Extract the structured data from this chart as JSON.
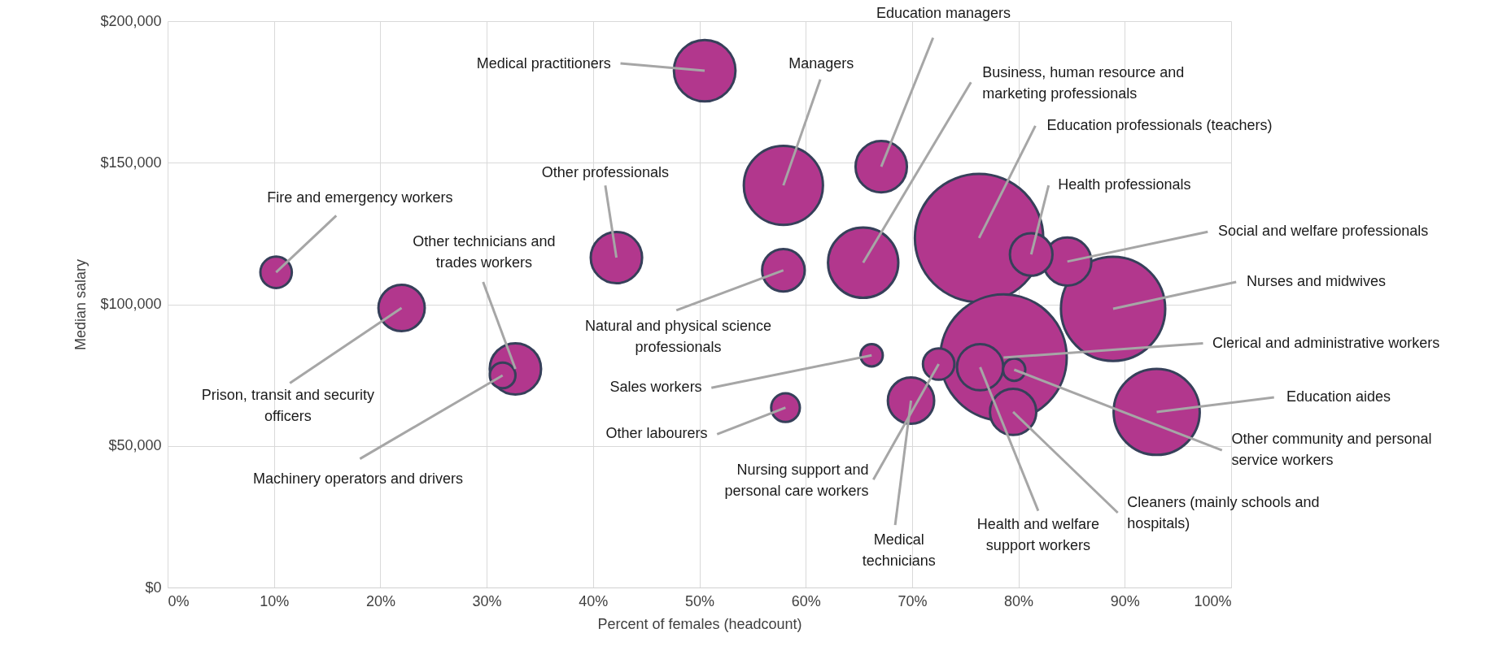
{
  "chart_data": {
    "type": "bubble",
    "xlabel": "Percent of females (headcount)",
    "ylabel": "Median salary",
    "color": "#b2378d",
    "x": [
      76.3,
      78.6,
      88.9,
      93.0,
      57.9,
      65.4,
      50.5,
      32.7,
      42.2,
      67.1,
      84.6,
      76.4,
      22.0,
      69.9,
      79.5,
      57.9,
      81.2,
      72.5,
      10.2,
      58.1,
      31.5,
      79.6,
      66.2
    ],
    "values": [
      123400,
      81200,
      98400,
      62000,
      142000,
      114700,
      182500,
      77200,
      116500,
      148600,
      115100,
      77800,
      98700,
      66000,
      62000,
      112000,
      117600,
      78900,
      111300,
      63500,
      74900,
      76900,
      82000
    ],
    "sizes": [
      1,
      0.97,
      0.66,
      0.45,
      0.38,
      0.3,
      0.23,
      0.16,
      0.16,
      0.16,
      0.14,
      0.13,
      0.13,
      0.13,
      0.13,
      0.11,
      0.11,
      0.06,
      0.06,
      0.05,
      0.04,
      0.03,
      0.03
    ],
    "annotations": [
      {
        "text": "Education professionals (teachers)",
        "x": 76.3,
        "y": 123400
      },
      {
        "text": "Clerical and administrative workers",
        "x": 78.6,
        "y": 81200
      },
      {
        "text": "Nurses and midwives",
        "x": 88.9,
        "y": 98400
      },
      {
        "text": "Education aides",
        "x": 93.0,
        "y": 62000
      },
      {
        "text": "Managers",
        "x": 57.9,
        "y": 142000
      },
      {
        "text": "Business, human resource and\nmarketing professionals",
        "x": 65.4,
        "y": 114700
      },
      {
        "text": "Medical practitioners",
        "x": 50.5,
        "y": 182500
      },
      {
        "text": "Other technicians and\ntrades workers",
        "x": 32.7,
        "y": 77200
      },
      {
        "text": "Other professionals",
        "x": 42.2,
        "y": 116500
      },
      {
        "text": "Education managers",
        "x": 67.1,
        "y": 148600
      },
      {
        "text": "Social and welfare professionals",
        "x": 84.6,
        "y": 115100
      },
      {
        "text": "Health and welfare\nsupport workers",
        "x": 76.4,
        "y": 77800
      },
      {
        "text": "Prison, transit and security\nofficers",
        "x": 22.0,
        "y": 98700
      },
      {
        "text": "Medical\ntechnicians",
        "x": 69.9,
        "y": 66000
      },
      {
        "text": "Cleaners (mainly schools and\nhospitals)",
        "x": 79.5,
        "y": 62000
      },
      {
        "text": "Natural and physical science\nprofessionals",
        "x": 57.9,
        "y": 112000
      },
      {
        "text": "Health professionals",
        "x": 81.2,
        "y": 117600
      },
      {
        "text": "Nursing support and\npersonal care workers",
        "x": 72.5,
        "y": 78900
      },
      {
        "text": "Fire and emergency workers",
        "x": 10.2,
        "y": 111300
      },
      {
        "text": "Other labourers",
        "x": 58.1,
        "y": 63500
      },
      {
        "text": "Machinery operators and drivers",
        "x": 31.5,
        "y": 74900
      },
      {
        "text": "Other community and personal\nservice workers",
        "x": 79.6,
        "y": 76900
      },
      {
        "text": "Sales workers",
        "x": 66.2,
        "y": 82000
      }
    ],
    "xlim": [
      0,
      100
    ],
    "ylim": [
      0,
      200000
    ],
    "xticks": [
      {
        "value": 0,
        "label": "0%"
      },
      {
        "value": 10,
        "label": "10%"
      },
      {
        "value": 20,
        "label": "20%"
      },
      {
        "value": 30,
        "label": "30%"
      },
      {
        "value": 40,
        "label": "40%"
      },
      {
        "value": 50,
        "label": "50%"
      },
      {
        "value": 60,
        "label": "60%"
      },
      {
        "value": 70,
        "label": "70%"
      },
      {
        "value": 80,
        "label": "80%"
      },
      {
        "value": 90,
        "label": "90%"
      },
      {
        "value": 100,
        "label": "100%"
      }
    ],
    "yticks": [
      {
        "value": 0,
        "label": "$0"
      },
      {
        "value": 50000,
        "label": "$50,000"
      },
      {
        "value": 100000,
        "label": "$100,000"
      },
      {
        "value": 150000,
        "label": "$150,000"
      },
      {
        "value": 200000,
        "label": "$200,000"
      }
    ],
    "grid": true
  }
}
